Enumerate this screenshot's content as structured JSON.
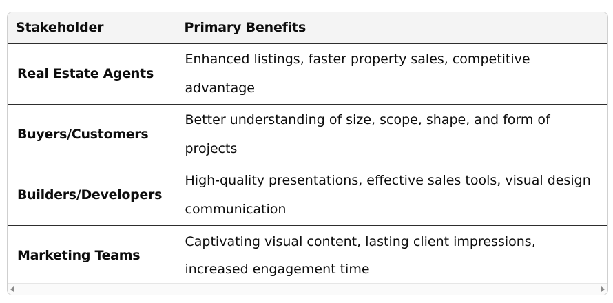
{
  "table": {
    "headers": [
      "Stakeholder",
      "Primary Benefits"
    ],
    "rows": [
      {
        "stakeholder": "Real Estate Agents",
        "benefits": "Enhanced listings, faster property sales, competitive advantage"
      },
      {
        "stakeholder": "Buyers/Customers",
        "benefits": "Better understanding of size, scope, shape, and form of projects"
      },
      {
        "stakeholder": "Builders/Developers",
        "benefits": "High-quality presentations, effective sales tools, visual design communication"
      },
      {
        "stakeholder": "Marketing Teams",
        "benefits": "Captivating visual content, lasting client impressions, increased engagement time"
      }
    ]
  },
  "scrollbar": {
    "left_icon": "chevron-left-icon",
    "right_icon": "chevron-right-icon"
  }
}
